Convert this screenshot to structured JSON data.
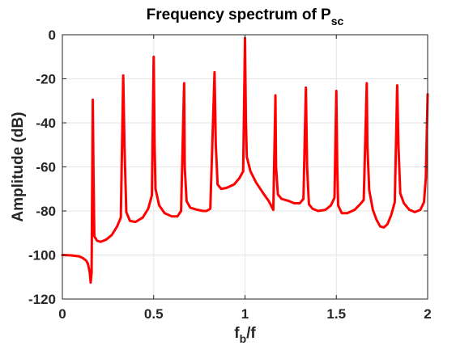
{
  "chart_data": {
    "type": "line",
    "title": "Frequency spectrum of P",
    "title_subscript": "sc",
    "xlabel": "f",
    "xlabel_subscript": "b",
    "xlabel_suffix": "/f",
    "ylabel": "Amplitude (dB)",
    "xlim": [
      0,
      2
    ],
    "ylim": [
      -120,
      0
    ],
    "xticks": [
      0,
      0.5,
      1,
      1.5,
      2
    ],
    "xtick_labels": [
      "0",
      "0.5",
      "1",
      "1.5",
      "2"
    ],
    "yticks": [
      0,
      -20,
      -40,
      -60,
      -80,
      -100,
      -120
    ],
    "ytick_labels": [
      "0",
      "-20",
      "-40",
      "-60",
      "-80",
      "-100",
      "-120"
    ],
    "grid": true,
    "series": [
      {
        "color": "#ff0000",
        "x": [
          0,
          0.05,
          0.09,
          0.11,
          0.13,
          0.14,
          0.15,
          0.155,
          0.16,
          0.1667,
          0.17,
          0.175,
          0.19,
          0.21,
          0.24,
          0.27,
          0.3,
          0.32,
          0.3333,
          0.34,
          0.35,
          0.37,
          0.4,
          0.44,
          0.47,
          0.49,
          0.5,
          0.505,
          0.51,
          0.53,
          0.56,
          0.6,
          0.63,
          0.65,
          0.6667,
          0.67,
          0.68,
          0.7,
          0.74,
          0.77,
          0.79,
          0.81,
          0.8333,
          0.84,
          0.85,
          0.87,
          0.9,
          0.94,
          0.97,
          0.99,
          1.0,
          1.005,
          1.01,
          1.03,
          1.06,
          1.1,
          1.13,
          1.155,
          1.1667,
          1.17,
          1.18,
          1.2,
          1.24,
          1.27,
          1.3,
          1.32,
          1.3333,
          1.34,
          1.35,
          1.37,
          1.4,
          1.44,
          1.47,
          1.49,
          1.5,
          1.505,
          1.51,
          1.53,
          1.56,
          1.6,
          1.63,
          1.65,
          1.6667,
          1.67,
          1.68,
          1.7,
          1.72,
          1.74,
          1.76,
          1.78,
          1.8,
          1.82,
          1.8333,
          1.84,
          1.85,
          1.87,
          1.9,
          1.93,
          1.96,
          1.98,
          1.99,
          2.0
        ],
        "y": [
          -100,
          -100.2,
          -100.6,
          -101.3,
          -102.5,
          -104,
          -108,
          -112.5,
          -108,
          -29.5,
          -60,
          -91.5,
          -93.5,
          -94,
          -93,
          -91,
          -87,
          -83,
          -18.5,
          -50,
          -80.5,
          -84.5,
          -85,
          -83,
          -79,
          -73,
          -10,
          -50,
          -70,
          -77.5,
          -81,
          -82.5,
          -82.5,
          -80,
          -22,
          -60,
          -75.5,
          -78.5,
          -79.5,
          -80,
          -80,
          -79,
          -17,
          -50,
          -68,
          -70,
          -69.5,
          -68,
          -65,
          -62,
          -1.5,
          -40,
          -55.5,
          -62,
          -67,
          -72,
          -75.5,
          -79.5,
          -27.5,
          -60,
          -72.5,
          -74.5,
          -75.5,
          -76.5,
          -76.5,
          -74.5,
          -24,
          -60,
          -77,
          -79,
          -80,
          -79.5,
          -77.5,
          -74,
          -25.5,
          -60,
          -77.5,
          -81,
          -81,
          -79.5,
          -77,
          -75,
          -22,
          -50,
          -70.5,
          -79.5,
          -84,
          -87,
          -87.5,
          -86,
          -82,
          -76,
          -23,
          -50,
          -72,
          -76.5,
          -79.5,
          -80.5,
          -79.5,
          -76,
          -65,
          -27
        ]
      }
    ]
  }
}
